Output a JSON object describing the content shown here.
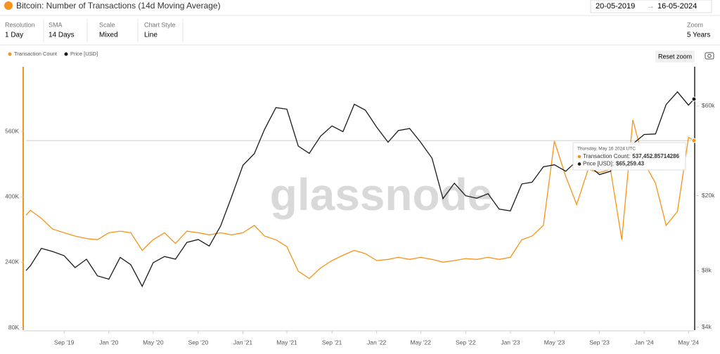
{
  "header": {
    "date_from": "20-05-2019",
    "date_to": "16-05-2024"
  },
  "toolbar": [
    {
      "label": "Resolution",
      "value": "1 Day"
    },
    {
      "label": "SMA",
      "value": "14 Days"
    },
    {
      "label": "Scale",
      "value": "Mixed"
    },
    {
      "label": "Chart Style",
      "value": "Line"
    },
    {
      "label": "Zoom",
      "value": "5 Years"
    }
  ],
  "reset_zoom": "Reset zoom",
  "chart_data": {
    "type": "line",
    "title": "Bitcoin: Number of Transactions (14d Moving Average)",
    "watermark": "glassnode",
    "legend": "top-left",
    "grid": false,
    "y2scale": "log",
    "x": [
      "2019-05-20",
      "2019-06-01",
      "2019-07-01",
      "2019-08-01",
      "2019-09-01",
      "2019-10-01",
      "2019-11-01",
      "2019-12-01",
      "2020-01-01",
      "2020-02-01",
      "2020-03-01",
      "2020-04-01",
      "2020-05-01",
      "2020-06-01",
      "2020-07-01",
      "2020-08-01",
      "2020-09-01",
      "2020-10-01",
      "2020-11-01",
      "2020-12-01",
      "2021-01-01",
      "2021-02-01",
      "2021-03-01",
      "2021-04-01",
      "2021-05-01",
      "2021-06-01",
      "2021-07-01",
      "2021-08-01",
      "2021-09-01",
      "2021-10-01",
      "2021-11-01",
      "2021-12-01",
      "2022-01-01",
      "2022-02-01",
      "2022-03-01",
      "2022-04-01",
      "2022-05-01",
      "2022-06-01",
      "2022-07-01",
      "2022-08-01",
      "2022-09-01",
      "2022-10-01",
      "2022-11-01",
      "2022-12-01",
      "2023-01-01",
      "2023-02-01",
      "2023-03-01",
      "2023-04-01",
      "2023-05-01",
      "2023-06-01",
      "2023-07-01",
      "2023-08-01",
      "2023-09-01",
      "2023-10-01",
      "2023-11-01",
      "2023-12-01",
      "2024-01-01",
      "2024-02-01",
      "2024-03-01",
      "2024-04-01",
      "2024-05-01",
      "2024-05-16"
    ],
    "xlim": [
      "2019-05-20",
      "2024-05-16"
    ],
    "xticks": [
      {
        "value": "2019-09-01",
        "label": "Sep '19"
      },
      {
        "value": "2020-01-01",
        "label": "Jan '20"
      },
      {
        "value": "2020-05-01",
        "label": "May '20"
      },
      {
        "value": "2020-09-01",
        "label": "Sep '20"
      },
      {
        "value": "2021-01-01",
        "label": "Jan '21"
      },
      {
        "value": "2021-05-01",
        "label": "May '21"
      },
      {
        "value": "2021-09-01",
        "label": "Sep '21"
      },
      {
        "value": "2022-01-01",
        "label": "Jan '22"
      },
      {
        "value": "2022-05-01",
        "label": "May '22"
      },
      {
        "value": "2022-09-01",
        "label": "Sep '22"
      },
      {
        "value": "2023-01-01",
        "label": "Jan '23"
      },
      {
        "value": "2023-05-01",
        "label": "May '23"
      },
      {
        "value": "2023-09-01",
        "label": "Sep '23"
      },
      {
        "value": "2024-01-01",
        "label": "Jan '24"
      },
      {
        "value": "2024-05-01",
        "label": "May '24"
      }
    ],
    "ylim": [
      74000,
      718000
    ],
    "yticks": [
      {
        "value": 80000,
        "label": "80K"
      },
      {
        "value": 240000,
        "label": "240K"
      },
      {
        "value": 400000,
        "label": "400K"
      },
      {
        "value": 560000,
        "label": "560K"
      }
    ],
    "y2lim": [
      3860,
      97000
    ],
    "y2ticks": [
      {
        "value": 4000,
        "label": "$4k"
      },
      {
        "value": 8000,
        "label": "$8k"
      },
      {
        "value": 20000,
        "label": "$20k"
      },
      {
        "value": 60000,
        "label": "$60k"
      }
    ],
    "series": [
      {
        "name": "Transaction Count",
        "color": "#f7931a",
        "values": [
          355000,
          367000,
          347000,
          321000,
          312000,
          304000,
          298000,
          295000,
          312000,
          316000,
          312000,
          269000,
          295000,
          312000,
          286000,
          316000,
          312000,
          307000,
          312000,
          307000,
          312000,
          330000,
          304000,
          295000,
          278000,
          218000,
          200000,
          226000,
          244000,
          257000,
          269000,
          261000,
          244000,
          247000,
          252000,
          247000,
          252000,
          247000,
          240000,
          244000,
          249000,
          247000,
          252000,
          247000,
          252000,
          295000,
          304000,
          330000,
          536000,
          450000,
          381000,
          467000,
          459000,
          467000,
          295000,
          588000,
          484000,
          433000,
          330000,
          364000,
          545000,
          537452.85714286
        ]
      },
      {
        "name": "Price [USD]",
        "color": "#1a1a1a",
        "axis": "y2",
        "values": [
          8000,
          8500,
          10500,
          10100,
          9600,
          8300,
          9200,
          7500,
          7200,
          9400,
          8600,
          6600,
          8800,
          9500,
          9200,
          11300,
          11700,
          10800,
          13800,
          19700,
          29000,
          33500,
          45000,
          58800,
          57700,
          36700,
          33600,
          41500,
          47000,
          43800,
          61300,
          57000,
          46300,
          38500,
          44400,
          45500,
          38500,
          31700,
          19300,
          23300,
          20000,
          19400,
          20500,
          17000,
          16600,
          23100,
          23600,
          28500,
          29200,
          27000,
          30600,
          29200,
          25900,
          27000,
          34600,
          37700,
          42300,
          42600,
          61100,
          71300,
          60600,
          65259.43
        ]
      }
    ],
    "tooltip": {
      "date": "Thursday, May 16 2024 UTC",
      "items": [
        {
          "label": "Transaction Count:",
          "value": "537,452.85714286"
        },
        {
          "label": "Price [USD]:",
          "value": "$65,259.43"
        }
      ]
    }
  }
}
